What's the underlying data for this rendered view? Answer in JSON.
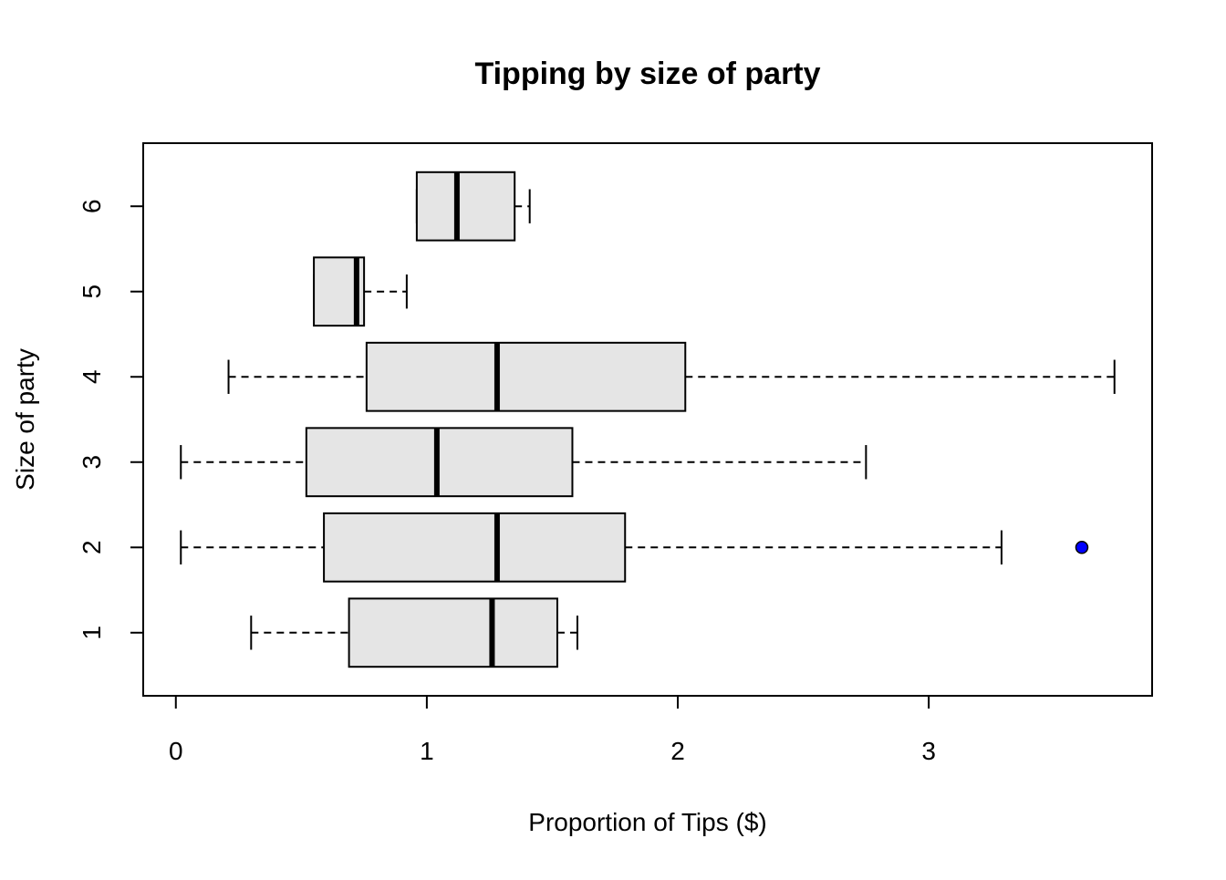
{
  "chart_data": {
    "type": "boxplot",
    "orientation": "horizontal",
    "title": "Tipping by size of party",
    "xlabel": "Proportion of Tips ($)",
    "ylabel": "Size of party",
    "categories": [
      "1",
      "2",
      "3",
      "4",
      "5",
      "6"
    ],
    "boxes": [
      {
        "low": 0.3,
        "q1": 0.69,
        "median": 1.26,
        "q3": 1.52,
        "high": 1.6
      },
      {
        "low": 0.02,
        "q1": 0.59,
        "median": 1.28,
        "q3": 1.79,
        "high": 3.29,
        "outliers": [
          3.61
        ]
      },
      {
        "low": 0.02,
        "q1": 0.52,
        "median": 1.04,
        "q3": 1.58,
        "high": 2.75
      },
      {
        "low": 0.21,
        "q1": 0.76,
        "median": 1.28,
        "q3": 2.03,
        "high": 3.74
      },
      {
        "low": 0.55,
        "q1": 0.55,
        "median": 0.72,
        "q3": 0.75,
        "high": 0.92
      },
      {
        "low": 0.96,
        "q1": 0.96,
        "median": 1.12,
        "q3": 1.35,
        "high": 1.41
      }
    ],
    "color": "#e5e5e5",
    "outlier_color": "#0000ff",
    "xlim": [
      -0.13,
      3.89
    ],
    "xticks": [
      0,
      1,
      2,
      3
    ],
    "ylim": [
      0.26,
      6.74
    ]
  }
}
